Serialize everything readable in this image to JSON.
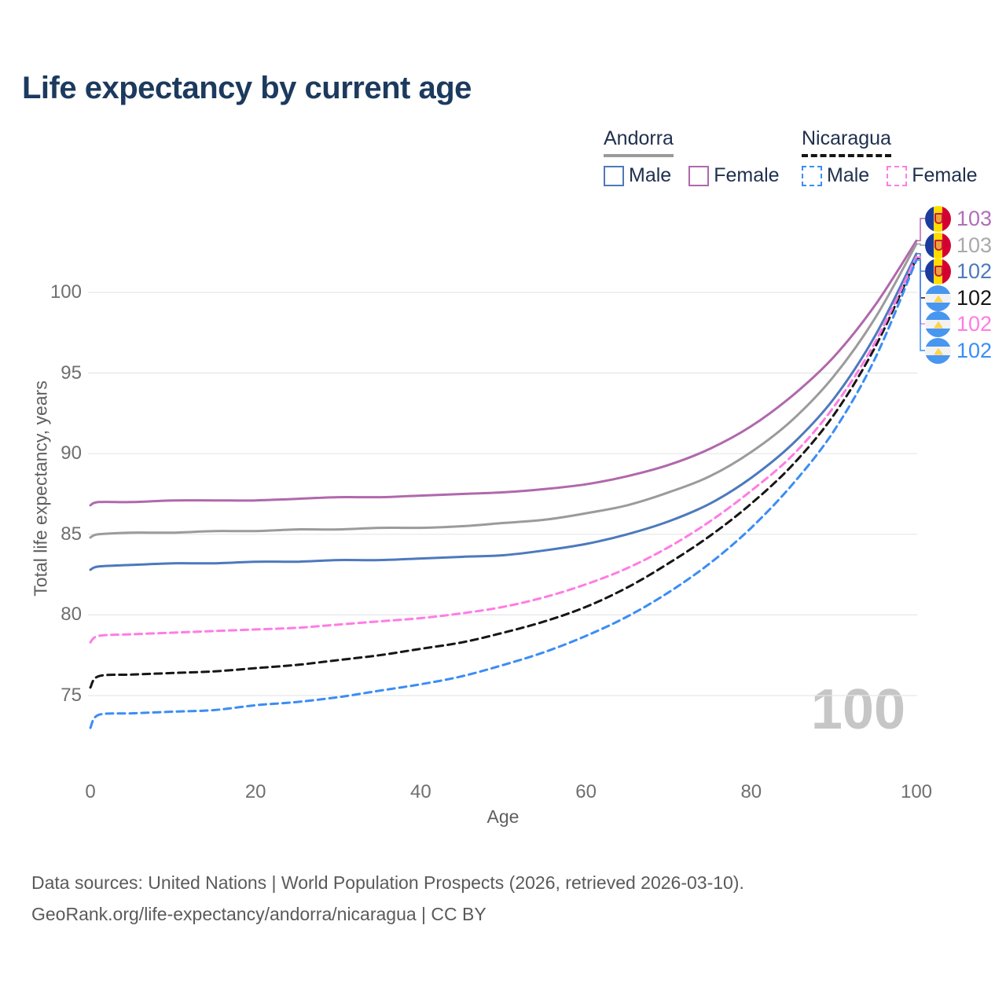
{
  "title": "Life expectancy by current age",
  "watermark": "100",
  "legend": {
    "groups": [
      {
        "name": "Andorra",
        "line_style": "solid",
        "rule_color": "#9a9a9a",
        "items": [
          {
            "label": "Male",
            "color": "#4d79bd",
            "dashed": false
          },
          {
            "label": "Female",
            "color": "#b068ac",
            "dashed": false
          }
        ]
      },
      {
        "name": "Nicaragua",
        "line_style": "dashed",
        "rule_color": "#161616",
        "items": [
          {
            "label": "Male",
            "color": "#3b8df5",
            "dashed": true
          },
          {
            "label": "Female",
            "color": "#ff7ce3",
            "dashed": true
          }
        ]
      }
    ]
  },
  "chart_data": {
    "type": "line",
    "title": "Life expectancy by current age",
    "xlabel": "Age",
    "ylabel": "Total life expectancy, years",
    "x_ticks": [
      0,
      20,
      40,
      60,
      80,
      100
    ],
    "y_ticks": [
      75,
      80,
      85,
      90,
      95,
      100
    ],
    "xlim": [
      0,
      100
    ],
    "ylim": [
      73,
      103.5
    ],
    "grid": "horizontal",
    "legend_position": "top-right",
    "x": [
      0,
      1,
      5,
      10,
      15,
      20,
      25,
      30,
      35,
      40,
      45,
      50,
      55,
      60,
      65,
      70,
      75,
      80,
      85,
      90,
      95,
      100
    ],
    "series": [
      {
        "name": "Andorra Female",
        "country": "Andorra",
        "sex": "Female",
        "flag": "andorra",
        "color": "#b068ac",
        "dashed": false,
        "end_label": "103",
        "end_label_color": "#b06fb8",
        "values": [
          86.8,
          87.0,
          87.0,
          87.1,
          87.1,
          87.1,
          87.2,
          87.3,
          87.3,
          87.4,
          87.5,
          87.6,
          87.8,
          88.1,
          88.6,
          89.3,
          90.3,
          91.7,
          93.6,
          96.0,
          99.2,
          103.2
        ]
      },
      {
        "name": "Andorra Total",
        "country": "Andorra",
        "sex": "Both",
        "flag": "andorra",
        "color": "#9b9b9b",
        "dashed": false,
        "end_label": "103",
        "end_label_color": "#a9a9a9",
        "values": [
          84.8,
          85.0,
          85.1,
          85.1,
          85.2,
          85.2,
          85.3,
          85.3,
          85.4,
          85.4,
          85.5,
          85.7,
          85.9,
          86.3,
          86.8,
          87.6,
          88.6,
          90.1,
          92.1,
          94.8,
          98.4,
          103.0
        ]
      },
      {
        "name": "Andorra Male",
        "country": "Andorra",
        "sex": "Male",
        "flag": "andorra",
        "color": "#4d79bd",
        "dashed": false,
        "end_label": "102",
        "end_label_color": "#4d79bd",
        "values": [
          82.8,
          83.0,
          83.1,
          83.2,
          83.2,
          83.3,
          83.3,
          83.4,
          83.4,
          83.5,
          83.6,
          83.7,
          84.0,
          84.4,
          85.0,
          85.8,
          86.9,
          88.5,
          90.6,
          93.4,
          97.3,
          102.4
        ]
      },
      {
        "name": "Nicaragua Total",
        "country": "Nicaragua",
        "sex": "Both",
        "flag": "nicaragua",
        "color": "#161616",
        "dashed": true,
        "end_label": "102",
        "end_label_color": "#161616",
        "values": [
          75.5,
          76.2,
          76.3,
          76.4,
          76.5,
          76.7,
          76.9,
          77.2,
          77.5,
          77.9,
          78.3,
          78.9,
          79.6,
          80.5,
          81.7,
          83.2,
          84.9,
          86.9,
          89.3,
          92.4,
          96.6,
          102.1
        ]
      },
      {
        "name": "Nicaragua Female",
        "country": "Nicaragua",
        "sex": "Female",
        "flag": "nicaragua",
        "color": "#ff7ce3",
        "dashed": true,
        "end_label": "102",
        "end_label_color": "#ff7ce3",
        "values": [
          78.3,
          78.7,
          78.8,
          78.9,
          79.0,
          79.1,
          79.2,
          79.4,
          79.6,
          79.8,
          80.1,
          80.5,
          81.1,
          81.9,
          82.9,
          84.2,
          85.8,
          87.7,
          89.9,
          92.9,
          96.9,
          102.2
        ]
      },
      {
        "name": "Nicaragua Male",
        "country": "Nicaragua",
        "sex": "Male",
        "flag": "nicaragua",
        "color": "#3b8df5",
        "dashed": true,
        "end_label": "102",
        "end_label_color": "#3b8df5",
        "values": [
          73.0,
          73.8,
          73.9,
          74.0,
          74.1,
          74.4,
          74.6,
          74.9,
          75.3,
          75.7,
          76.2,
          76.9,
          77.7,
          78.7,
          79.9,
          81.4,
          83.2,
          85.4,
          88.1,
          91.4,
          95.9,
          102.0
        ]
      }
    ]
  },
  "footer": {
    "line1": "Data sources: United Nations | World Population Prospects (2026, retrieved 2026-03-10).",
    "line2": "GeoRank.org/life-expectancy/andorra/nicaragua | CC BY"
  }
}
